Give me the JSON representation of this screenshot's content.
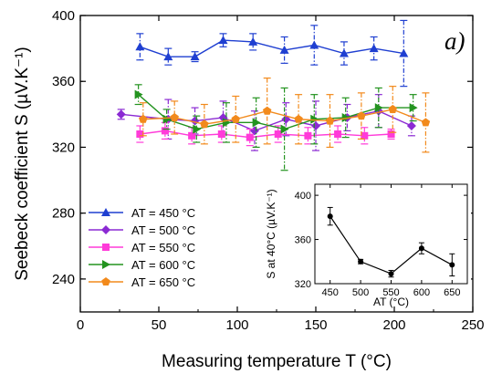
{
  "chart_data": [
    {
      "type": "line",
      "panel_label": "a)",
      "xlabel": "Measuring temperature T (°C)",
      "ylabel": "Seebeck coefficient S (µV.K⁻¹)",
      "xlim": [
        0,
        250
      ],
      "ylim": [
        220,
        400
      ],
      "xticks": [
        0,
        50,
        100,
        150,
        200,
        250
      ],
      "yticks": [
        240,
        280,
        320,
        360,
        400
      ],
      "grid": false,
      "legend_position": "bottom-left",
      "series": [
        {
          "name": "AT = 450 °C",
          "color": "#1f3fd1",
          "marker": "triangle-up",
          "dash": "",
          "x": [
            38,
            56,
            73,
            91,
            110,
            130,
            149,
            168,
            187,
            206
          ],
          "y": [
            381,
            375,
            375,
            385,
            384,
            379,
            382,
            377,
            380,
            377
          ],
          "err": [
            8,
            5,
            3,
            4,
            5,
            8,
            12,
            7,
            7,
            20
          ]
        },
        {
          "name": "AT = 500 °C",
          "color": "#8b2ad3",
          "marker": "diamond",
          "dash": "",
          "x": [
            26,
            56,
            73,
            91,
            111,
            131,
            150,
            170,
            190,
            211
          ],
          "y": [
            340,
            337,
            336,
            338,
            330,
            337,
            333,
            338,
            342,
            333
          ],
          "err": [
            3,
            12,
            8,
            10,
            12,
            10,
            15,
            8,
            10,
            6
          ]
        },
        {
          "name": "AT = 550 °C",
          "color": "#ff3bd9",
          "marker": "square",
          "dash": "",
          "x": [
            38,
            54,
            71,
            90,
            108,
            126,
            145,
            164,
            181,
            198
          ],
          "y": [
            328,
            330,
            327,
            328,
            326,
            328,
            327,
            328,
            327,
            328
          ],
          "err": [
            5,
            5,
            5,
            5,
            5,
            5,
            5,
            5,
            5,
            3
          ]
        },
        {
          "name": "AT = 600 °C",
          "color": "#23931f",
          "marker": "triangle-right",
          "dash": "",
          "x": [
            37,
            55,
            74,
            93,
            112,
            130,
            149,
            169,
            190,
            212
          ],
          "y": [
            352,
            337,
            331,
            335,
            335,
            331,
            337,
            338,
            344,
            344
          ],
          "err": [
            6,
            6,
            8,
            12,
            15,
            25,
            15,
            12,
            12,
            8
          ]
        },
        {
          "name": "AT = 650 °C",
          "color": "#f28a1c",
          "marker": "pentagon",
          "dash": "6,3",
          "x": [
            40,
            60,
            79,
            99,
            119,
            139,
            159,
            179,
            199,
            220
          ],
          "y": [
            337,
            338,
            334,
            337,
            342,
            337,
            336,
            339,
            343,
            335
          ],
          "err": [
            10,
            10,
            12,
            14,
            20,
            15,
            16,
            14,
            14,
            18
          ]
        }
      ]
    },
    {
      "type": "line",
      "xlabel": "AT (°C)",
      "ylabel": "S at 40°C (µV.K⁻¹)",
      "xlim": [
        425,
        675
      ],
      "ylim": [
        320,
        410
      ],
      "xticks": [
        450,
        500,
        550,
        600,
        650
      ],
      "yticks": [
        320,
        360,
        400
      ],
      "grid": false,
      "series": [
        {
          "color": "#000000",
          "marker": "circle",
          "x": [
            450,
            500,
            550,
            600,
            650
          ],
          "y": [
            381,
            340,
            329,
            352,
            337
          ],
          "err": [
            8,
            2,
            3,
            5,
            10
          ]
        }
      ]
    }
  ]
}
